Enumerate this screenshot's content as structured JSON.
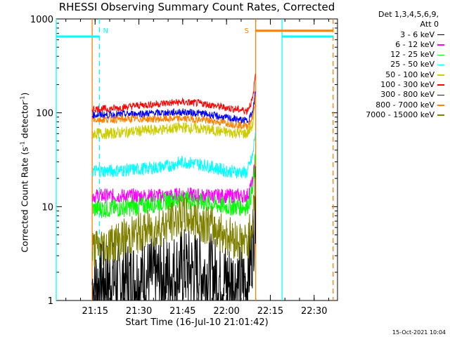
{
  "chart_data": {
    "type": "line",
    "title": "RHESSI Observing Summary Count Rates, Corrected",
    "xlabel": "Start Time (16-Jul-10 21:01:42)",
    "ylabel": {
      "pre": "Corrected Count Rate (s",
      "exp1": "-1",
      "mid": " detector",
      "exp2": "-1",
      "post": ")"
    },
    "xlim": [
      "21:01:42",
      "22:38:00"
    ],
    "ylim": [
      1,
      1000
    ],
    "yscale": "log",
    "xticks": [
      "21:15",
      "21:30",
      "21:45",
      "22:00",
      "22:15",
      "22:30"
    ],
    "yticks": [
      "1",
      "10",
      "100",
      "1000"
    ],
    "legend_header": [
      "Det 1,3,4,5,6,9,",
      "Att 0"
    ],
    "series": [
      {
        "name": "3 - 6 keV",
        "color": "#000000",
        "points": [
          [
            "21:14",
            1.5
          ],
          [
            "21:20",
            1.6
          ],
          [
            "21:30",
            1.7
          ],
          [
            "21:40",
            1.8
          ],
          [
            "21:45",
            2.2
          ],
          [
            "21:52",
            2.0
          ],
          [
            "22:00",
            1.6
          ],
          [
            "22:07",
            1.5
          ],
          [
            "22:09",
            4.0
          ],
          [
            "22:10",
            12.0
          ]
        ]
      },
      {
        "name": "6 - 12 keV",
        "color": "#ff00ff",
        "points": [
          [
            "21:14",
            13
          ],
          [
            "21:20",
            13
          ],
          [
            "21:30",
            13
          ],
          [
            "21:40",
            13
          ],
          [
            "21:45",
            13.5
          ],
          [
            "21:52",
            13
          ],
          [
            "22:00",
            13
          ],
          [
            "22:07",
            13
          ],
          [
            "22:09",
            18
          ],
          [
            "22:10",
            40
          ]
        ]
      },
      {
        "name": "12 - 25 keV",
        "color": "#00ff00",
        "points": [
          [
            "21:14",
            9.5
          ],
          [
            "21:20",
            9.5
          ],
          [
            "21:30",
            10
          ],
          [
            "21:40",
            11.5
          ],
          [
            "21:45",
            12
          ],
          [
            "21:52",
            11
          ],
          [
            "22:00",
            10
          ],
          [
            "22:07",
            10
          ],
          [
            "22:09",
            15
          ],
          [
            "22:10",
            35
          ]
        ]
      },
      {
        "name": "25 - 50 keV",
        "color": "#00ffff",
        "points": [
          [
            "21:14",
            24
          ],
          [
            "21:20",
            24
          ],
          [
            "21:30",
            25
          ],
          [
            "21:40",
            27
          ],
          [
            "21:45",
            30
          ],
          [
            "21:52",
            28
          ],
          [
            "22:00",
            24
          ],
          [
            "22:07",
            23
          ],
          [
            "22:09",
            35
          ],
          [
            "22:10",
            70
          ]
        ]
      },
      {
        "name": "50 - 100 keV",
        "color": "#cccc00",
        "points": [
          [
            "21:14",
            60
          ],
          [
            "21:20",
            60
          ],
          [
            "21:30",
            64
          ],
          [
            "21:40",
            67
          ],
          [
            "21:45",
            70
          ],
          [
            "21:52",
            67
          ],
          [
            "22:00",
            62
          ],
          [
            "22:07",
            60
          ],
          [
            "22:09",
            75
          ],
          [
            "22:10",
            140
          ]
        ]
      },
      {
        "name": "100 - 300 keV",
        "color": "#ff0000",
        "points": [
          [
            "21:14",
            110
          ],
          [
            "21:20",
            110
          ],
          [
            "21:30",
            120
          ],
          [
            "21:40",
            127
          ],
          [
            "21:45",
            130
          ],
          [
            "21:52",
            125
          ],
          [
            "22:00",
            113
          ],
          [
            "22:07",
            105
          ],
          [
            "22:09",
            140
          ],
          [
            "22:10",
            280
          ]
        ]
      },
      {
        "name": "300 - 800 keV",
        "color": "#0000ff",
        "points": [
          [
            "21:14",
            95
          ],
          [
            "21:20",
            95
          ],
          [
            "21:30",
            98
          ],
          [
            "21:40",
            100
          ],
          [
            "21:45",
            102
          ],
          [
            "21:52",
            98
          ],
          [
            "22:00",
            88
          ],
          [
            "22:07",
            82
          ],
          [
            "22:09",
            100
          ],
          [
            "22:10",
            180
          ]
        ]
      },
      {
        "name": "800 - 7000 keV",
        "color": "#ff8000",
        "points": [
          [
            "21:14",
            85
          ],
          [
            "21:20",
            85
          ],
          [
            "21:30",
            86
          ],
          [
            "21:40",
            86
          ],
          [
            "21:45",
            87
          ],
          [
            "21:52",
            84
          ],
          [
            "22:00",
            78
          ],
          [
            "22:07",
            72
          ],
          [
            "22:09",
            90
          ],
          [
            "22:10",
            150
          ]
        ]
      },
      {
        "name": "7000 - 15000 keV",
        "color": "#808000",
        "points": [
          [
            "21:14",
            3.5
          ],
          [
            "21:20",
            4.0
          ],
          [
            "21:30",
            5.2
          ],
          [
            "21:40",
            6.5
          ],
          [
            "21:45",
            8.0
          ],
          [
            "21:52",
            6.8
          ],
          [
            "22:00",
            5.0
          ],
          [
            "22:07",
            4.0
          ],
          [
            "22:09",
            7.0
          ],
          [
            "22:10",
            20.0
          ]
        ]
      }
    ],
    "annotations": [
      {
        "text": "N",
        "color": "#00ffff",
        "at": "21:16:30"
      },
      {
        "text": "S",
        "color": "#ff8000",
        "at": "22:09:30"
      }
    ],
    "flag_bars": [
      {
        "color": "#00ffff",
        "from": "21:01:42",
        "to": "21:16:30",
        "level": 650
      },
      {
        "color": "#ff8000",
        "from": "22:10:00",
        "to": "22:36:30",
        "level": 750
      },
      {
        "color": "#00ffff",
        "from": "22:19:00",
        "to": "22:36:30",
        "level": 650
      }
    ],
    "vlines": [
      {
        "color": "#00ffff",
        "at": "21:01:42",
        "style": "solid"
      },
      {
        "color": "#ff8000",
        "at": "21:14:00",
        "style": "solid"
      },
      {
        "color": "#00ffff",
        "at": "21:16:30",
        "style": "dashed"
      },
      {
        "color": "#ff8000",
        "at": "22:10:00",
        "style": "solid"
      },
      {
        "color": "#00ffff",
        "at": "22:19:00",
        "style": "solid"
      },
      {
        "color": "#ff8000",
        "at": "22:36:30",
        "style": "dashed"
      }
    ]
  },
  "timestamp": "15-Oct-2021 10:04"
}
